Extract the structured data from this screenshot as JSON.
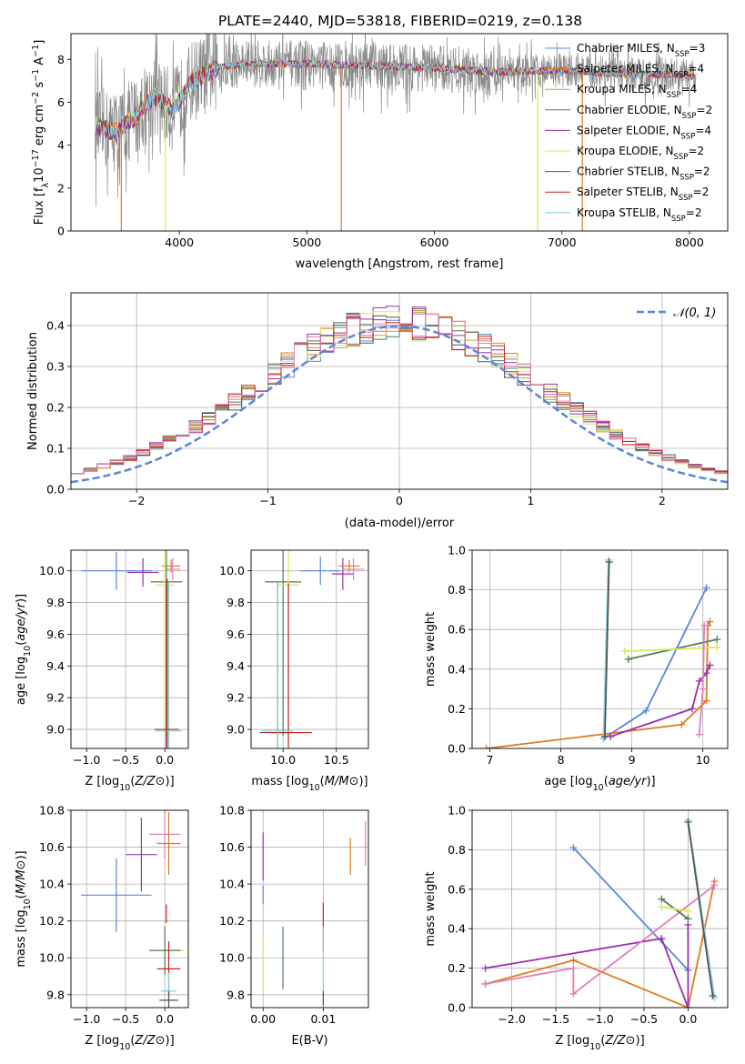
{
  "title": "PLATE=2440, MJD=53818, FIBERID=0219, z=0.138",
  "colors": {
    "Chabrier MILES": "#5b86d8",
    "Salpeter MILES": "#e07a20",
    "Kroupa MILES": "#c2a13a",
    "Chabrier ELODIE": "#4f7f55",
    "Salpeter ELODIE": "#9c2fb0",
    "Kroupa ELODIE": "#d6ea5a",
    "Chabrier STELIB": "#555555",
    "Salpeter STELIB": "#cc2222",
    "Kroupa STELIB": "#7fd3e0",
    "pink": "#e080b8",
    "data_gray": "#8a8a8a",
    "gauss": "#5b86d8"
  },
  "chart_data": [
    {
      "id": "spectrum",
      "type": "line",
      "title": "PLATE=2440, MJD=53818, FIBERID=0219, z=0.138",
      "xlabel": "wavelength [Angstrom, rest frame]",
      "ylabel_parts": [
        "Flux [f",
        "λ",
        "10",
        "−17",
        " erg cm",
        "−2",
        " s",
        "−1",
        " A",
        "−1",
        "]"
      ],
      "xlim": [
        3150,
        8300
      ],
      "ylim": [
        0,
        9.2
      ],
      "xticks": [
        4000,
        5000,
        6000,
        7000,
        8000
      ],
      "yticks": [
        0,
        2,
        4,
        6,
        8
      ],
      "legend": [
        {
          "name": "Chabrier MILES, N",
          "sub": "SSP",
          "tail": "=3"
        },
        {
          "name": "Salpeter MILES, N",
          "sub": "SSP",
          "tail": "=4"
        },
        {
          "name": "Kroupa MILES, N",
          "sub": "SSP",
          "tail": "=4"
        },
        {
          "name": "Chabrier ELODIE, N",
          "sub": "SSP",
          "tail": "=2"
        },
        {
          "name": "Salpeter ELODIE, N",
          "sub": "SSP",
          "tail": "=4"
        },
        {
          "name": "Kroupa ELODIE, N",
          "sub": "SSP",
          "tail": "=2"
        },
        {
          "name": "Chabrier STELIB, N",
          "sub": "SSP",
          "tail": "=2"
        },
        {
          "name": "Salpeter STELIB, N",
          "sub": "SSP",
          "tail": "=2"
        },
        {
          "name": "Kroupa STELIB, N",
          "sub": "SSP",
          "tail": "=2"
        }
      ],
      "continuum_x": [
        3340,
        3500,
        3650,
        3800,
        3950,
        4100,
        4300,
        4500,
        5000,
        5500,
        6000,
        6500,
        7000,
        7500,
        7900,
        8050
      ],
      "continuum_y": [
        4.9,
        4.6,
        5.3,
        6.3,
        5.6,
        7.0,
        7.6,
        7.8,
        7.8,
        7.7,
        7.6,
        7.4,
        7.5,
        7.3,
        7.3,
        7.2
      ],
      "drops": [
        {
          "x": 5270,
          "y": 0
        },
        {
          "x": 6810,
          "y": 0
        },
        {
          "x": 3545,
          "y": 0
        },
        {
          "x": 7160,
          "y": 0
        },
        {
          "x": 3890,
          "y": 0
        }
      ]
    },
    {
      "id": "residuals",
      "type": "histogram",
      "xlabel": "(data-model)/error",
      "ylabel": "Normed distribution",
      "xlim": [
        -2.5,
        2.5
      ],
      "ylim": [
        0,
        0.48
      ],
      "xticks": [
        -2,
        -1,
        0,
        1,
        2
      ],
      "yticks": [
        0.0,
        0.1,
        0.2,
        0.3,
        0.4
      ],
      "legend": [
        "𝒩(0, 1)"
      ],
      "bin_width": 0.1
    },
    {
      "id": "age_vs_Z",
      "type": "errorbar",
      "xlabel": "Z [log10(Z/Z⊙)]",
      "ylabel": "age [log10(age/yr)]",
      "xlim": [
        -1.2,
        0.3
      ],
      "ylim": [
        8.88,
        10.13
      ],
      "xticks": [
        -1.0,
        -0.5,
        0.0
      ],
      "yticks": [
        9.0,
        9.2,
        9.4,
        9.6,
        9.8,
        10.0
      ],
      "points": [
        {
          "series": "Chabrier MILES",
          "x": -0.62,
          "y": 10.0,
          "xerr": 0.45,
          "yerr": 0.12
        },
        {
          "series": "Salpeter ELODIE",
          "x": -0.28,
          "y": 9.99,
          "xerr": 0.2,
          "yerr": 0.09
        },
        {
          "series": "Salpeter MILES",
          "x": 0.08,
          "y": 10.03,
          "xerr": 0.12,
          "yerr": 0.04
        },
        {
          "series": "pink",
          "x": 0.1,
          "y": 10.01,
          "xerr": 0.1,
          "yerr": 0.07
        },
        {
          "series": "Chabrier ELODIE",
          "x": 0.02,
          "y": 9.93,
          "xerr": 0.2,
          "yerr": 0.97
        },
        {
          "series": "Kroupa ELODIE",
          "x": 0.0,
          "y": 9.91,
          "xerr": 0.12,
          "yerr": 0.95
        },
        {
          "series": "Chabrier STELIB",
          "x": 0.03,
          "y": 9.0,
          "xerr": 0.15,
          "yerr": 0.95
        },
        {
          "series": "Kroupa STELIB",
          "x": 0.05,
          "y": 8.99,
          "xerr": 0.17,
          "yerr": 0.94
        },
        {
          "series": "Salpeter STELIB",
          "x": 0.02,
          "y": 9.0,
          "xerr": 0.15,
          "yerr": 0.94
        }
      ]
    },
    {
      "id": "age_vs_mass",
      "type": "errorbar",
      "xlabel": "mass [log10(M/M⊙)]",
      "xlim": [
        9.7,
        10.8
      ],
      "ylim": [
        8.88,
        10.13
      ],
      "xticks": [
        10.0,
        10.5
      ],
      "yticks": [
        9.0,
        9.2,
        9.4,
        9.6,
        9.8,
        10.0
      ],
      "points": [
        {
          "series": "Chabrier MILES",
          "x": 10.35,
          "y": 10.0,
          "xerr": 0.19,
          "yerr": 0.09
        },
        {
          "series": "Salpeter ELODIE",
          "x": 10.56,
          "y": 9.98,
          "xerr": 0.1,
          "yerr": 0.1
        },
        {
          "series": "Salpeter MILES",
          "x": 10.62,
          "y": 10.03,
          "xerr": 0.1,
          "yerr": 0.04
        },
        {
          "series": "pink",
          "x": 10.66,
          "y": 10.01,
          "xerr": 0.1,
          "yerr": 0.07
        },
        {
          "series": "Chabrier ELODIE",
          "x": 10.0,
          "y": 9.93,
          "xerr": 0.17,
          "yerr": 0.97
        },
        {
          "series": "Kroupa ELODIE",
          "x": 10.05,
          "y": 9.91,
          "xerr": 0.1,
          "yerr": 0.95
        },
        {
          "series": "Chabrier STELIB",
          "x": 9.95,
          "y": 8.98,
          "xerr": 0.17,
          "yerr": 0.95
        },
        {
          "series": "Salpeter STELIB",
          "x": 10.05,
          "y": 8.98,
          "xerr": 0.22,
          "yerr": 0.94
        },
        {
          "series": "Kroupa STELIB",
          "x": 9.95,
          "y": 8.99,
          "xerr": 0.15,
          "yerr": 0.94
        }
      ]
    },
    {
      "id": "weight_vs_age",
      "type": "line",
      "xlabel": "age [log10(age/yr)]",
      "ylabel": "mass weight",
      "xlim": [
        6.75,
        10.35
      ],
      "ylim": [
        0,
        1.0
      ],
      "xticks": [
        7,
        8,
        9,
        10
      ],
      "yticks": [
        0.0,
        0.2,
        0.4,
        0.6,
        0.8,
        1.0
      ],
      "series": [
        {
          "color": "Chabrier MILES",
          "x": [
            8.6,
            9.2,
            10.05
          ],
          "y": [
            0.05,
            0.19,
            0.81
          ]
        },
        {
          "color": "Salpeter MILES",
          "x": [
            6.95,
            9.7,
            10.05,
            10.07,
            10.1
          ],
          "y": [
            0.0,
            0.12,
            0.24,
            0.62,
            0.64
          ]
        },
        {
          "color": "Kroupa STELIB",
          "x": [
            8.6,
            8.67
          ],
          "y": [
            0.05,
            0.95
          ]
        },
        {
          "color": "Chabrier STELIB",
          "x": [
            8.62,
            8.68
          ],
          "y": [
            0.06,
            0.94
          ]
        },
        {
          "color": "Chabrier ELODIE",
          "x": [
            8.95,
            10.2
          ],
          "y": [
            0.45,
            0.55
          ]
        },
        {
          "color": "Kroupa ELODIE",
          "x": [
            8.9,
            10.2
          ],
          "y": [
            0.49,
            0.51
          ]
        },
        {
          "color": "Salpeter ELODIE",
          "x": [
            8.7,
            9.85,
            9.95,
            10.05,
            10.1
          ],
          "y": [
            0.06,
            0.2,
            0.34,
            0.38,
            0.42
          ]
        },
        {
          "color": "pink",
          "x": [
            9.95,
            10.0,
            10.02
          ],
          "y": [
            0.07,
            0.3,
            0.62
          ]
        }
      ]
    },
    {
      "id": "mass_vs_Z",
      "type": "errorbar",
      "xlabel": "Z [log10(Z/Z⊙)]",
      "ylabel": "mass [log10(M/M⊙)]",
      "xlim": [
        -1.2,
        0.3
      ],
      "ylim": [
        9.73,
        10.8
      ],
      "xticks": [
        -1.0,
        -0.5,
        0.0
      ],
      "yticks": [
        9.8,
        10.0,
        10.2,
        10.4,
        10.6,
        10.8
      ],
      "points": [
        {
          "series": "Chabrier MILES",
          "x": -0.62,
          "y": 10.34,
          "xerr": 0.45,
          "yerr": 0.2
        },
        {
          "series": "Salpeter ELODIE",
          "x": -0.3,
          "y": 10.56,
          "xerr": 0.2,
          "yerr": 0.2
        },
        {
          "series": "pink",
          "x": 0.0,
          "y": 10.67,
          "xerr": 0.2,
          "yerr": 0.13
        },
        {
          "series": "Salpeter MILES",
          "x": 0.05,
          "y": 10.62,
          "xerr": 0.15,
          "yerr": 0.17
        },
        {
          "series": "Salpeter STELIB",
          "x": 0.02,
          "y": 10.24,
          "xerr": 0.0,
          "yerr": 0.05
        },
        {
          "series": "Kroupa ELODIE",
          "x": 0.05,
          "y": 10.04,
          "xerr": 0.2,
          "yerr": 0.05
        },
        {
          "series": "Chabrier ELODIE",
          "x": 0.0,
          "y": 10.04,
          "xerr": 0.2,
          "yerr": 0.13
        },
        {
          "series": "Salpeter STELIB",
          "x": 0.05,
          "y": 9.94,
          "xerr": 0.15,
          "yerr": 0.15
        },
        {
          "series": "Kroupa STELIB",
          "x": 0.05,
          "y": 9.82,
          "xerr": 0.1,
          "yerr": 0.1
        },
        {
          "series": "Chabrier STELIB",
          "x": 0.05,
          "y": 9.77,
          "xerr": 0.12,
          "yerr": 0.05
        }
      ]
    },
    {
      "id": "mass_vs_EBV",
      "type": "errorbar",
      "xlabel": "E(B-V)",
      "xlim": [
        -0.002,
        0.0175
      ],
      "ylim": [
        9.73,
        10.8
      ],
      "xticks": [
        0.0,
        0.01
      ],
      "xticklabels": [
        "0.00",
        "0.01"
      ],
      "yticks": [
        9.8,
        10.0,
        10.2,
        10.4,
        10.6,
        10.8
      ],
      "points": [
        {
          "series": "Salpeter ELODIE",
          "x": 0.0,
          "y": 10.55,
          "yerr": 0.13
        },
        {
          "series": "Chabrier MILES",
          "x": 0.0,
          "y": 10.34,
          "yerr": 0.05
        },
        {
          "series": "Kroupa ELODIE",
          "x": 0.0,
          "y": 9.96,
          "yerr": 0.15
        },
        {
          "series": "Chabrier ELODIE",
          "x": 0.0033,
          "y": 10.0,
          "yerr": 0.17
        },
        {
          "series": "Salpeter STELIB",
          "x": 0.01,
          "y": 10.17,
          "yerr": 0.13
        },
        {
          "series": "Kroupa STELIB",
          "x": 0.01,
          "y": 9.95,
          "yerr": 0.22
        },
        {
          "series": "Chabrier STELIB",
          "x": 0.01,
          "y": 9.78,
          "yerr": 0.04
        },
        {
          "series": "Salpeter MILES",
          "x": 0.0145,
          "y": 10.55,
          "yerr": 0.1
        },
        {
          "series": "pink",
          "x": 0.017,
          "y": 10.62,
          "yerr": 0.12
        }
      ]
    },
    {
      "id": "weight_vs_Z",
      "type": "line",
      "xlabel": "Z [log10(Z/Z⊙)]",
      "ylabel": "mass weight",
      "xlim": [
        -2.45,
        0.45
      ],
      "ylim": [
        0,
        1.0
      ],
      "xticks": [
        -2.0,
        -1.5,
        -1.0,
        -0.5,
        0.0
      ],
      "xticklabels": [
        "−2.0",
        "−1.5",
        "−1.0",
        "−0.5",
        "0.0"
      ],
      "yticks": [
        0.0,
        0.2,
        0.4,
        0.6,
        0.8,
        1.0
      ],
      "series": [
        {
          "color": "Chabrier MILES",
          "x": [
            -1.3,
            0.0,
            0.0
          ],
          "y": [
            0.81,
            0.19,
            0.19
          ]
        },
        {
          "color": "Salpeter MILES",
          "x": [
            -2.3,
            -1.3,
            0.0,
            0.3
          ],
          "y": [
            0.12,
            0.24,
            0.0,
            0.64
          ]
        },
        {
          "color": "Salpeter ELODIE",
          "x": [
            -2.3,
            -0.3,
            0.0,
            0.0
          ],
          "y": [
            0.2,
            0.35,
            0.0,
            0.42
          ]
        },
        {
          "color": "pink",
          "x": [
            -2.3,
            -1.3,
            -1.3,
            0.3
          ],
          "y": [
            0.12,
            0.2,
            0.07,
            0.62
          ]
        },
        {
          "color": "Chabrier ELODIE",
          "x": [
            -0.3,
            0.0
          ],
          "y": [
            0.55,
            0.45
          ]
        },
        {
          "color": "Kroupa ELODIE",
          "x": [
            -0.3,
            0.0
          ],
          "y": [
            0.51,
            0.49
          ]
        },
        {
          "color": "Kroupa STELIB",
          "x": [
            0.0,
            0.3
          ],
          "y": [
            0.95,
            0.05
          ]
        },
        {
          "color": "Chabrier STELIB",
          "x": [
            0.0,
            0.28
          ],
          "y": [
            0.94,
            0.06
          ]
        }
      ]
    }
  ]
}
